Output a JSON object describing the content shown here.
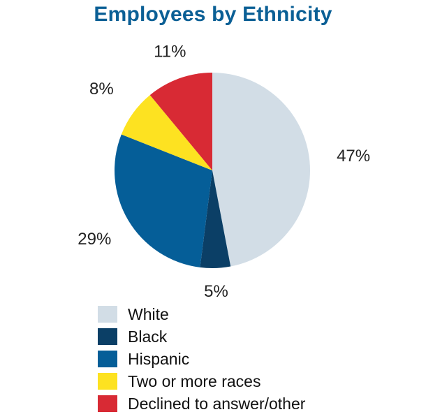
{
  "chart_data": {
    "type": "pie",
    "title": "Employees by Ethnicity",
    "unit": "%",
    "legend_position": "bottom",
    "slices": [
      {
        "name": "White",
        "value": 47,
        "label": "47%",
        "color": "#d2dde6"
      },
      {
        "name": "Black",
        "value": 5,
        "label": "5%",
        "color": "#0b3f66"
      },
      {
        "name": "Hispanic",
        "value": 29,
        "label": "29%",
        "color": "#055e98"
      },
      {
        "name": "Two or more races",
        "value": 8,
        "label": "8%",
        "color": "#fde221"
      },
      {
        "name": "Declined to answer/other",
        "value": 11,
        "label": "11%",
        "color": "#d82a34"
      }
    ]
  }
}
